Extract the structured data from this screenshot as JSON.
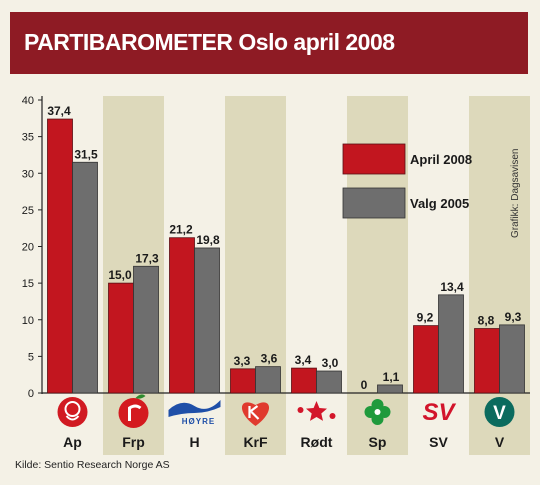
{
  "header": {
    "title": "PARTIBAROMETER Oslo april 2008"
  },
  "source": "Kilde: Sentio Research Norge AS",
  "credit": "Grafikk: Dagsavisen",
  "colors": {
    "header_bg": "#8e1b24",
    "background": "#f4f1e6",
    "band": "#ddd9bb",
    "april_2008": "#c2161f",
    "valg_2005": "#6e6e6e"
  },
  "chart_data": {
    "type": "bar",
    "title": "PARTIBAROMETER Oslo april 2008",
    "categories": [
      "Ap",
      "Frp",
      "H",
      "KrF",
      "Rødt",
      "Sp",
      "SV",
      "V"
    ],
    "series": [
      {
        "name": "April 2008",
        "values": [
          37.4,
          15.0,
          21.2,
          3.3,
          3.4,
          0,
          9.2,
          8.8
        ],
        "labels": [
          "37,4",
          "15,0",
          "21,2",
          "3,3",
          "3,4",
          "0",
          "9,2",
          "8,8"
        ]
      },
      {
        "name": "Valg 2005",
        "values": [
          31.5,
          17.3,
          19.8,
          3.6,
          3.0,
          1.1,
          13.4,
          9.3
        ],
        "labels": [
          "31,5",
          "17,3",
          "19,8",
          "3,6",
          "3,0",
          "1,1",
          "13,4",
          "9,3"
        ]
      }
    ],
    "yticks": [
      "0",
      "5",
      "10",
      "15",
      "20",
      "25",
      "30",
      "35",
      "40"
    ],
    "ylim": [
      0,
      40
    ],
    "legend_position": "top-right",
    "grid": false
  },
  "logos": [
    "ap-rose-logo",
    "frp-apple-logo",
    "hoyre-logo",
    "krf-heart-logo",
    "rodt-star-logo",
    "sp-clover-logo",
    "sv-logo",
    "venstre-logo"
  ],
  "logo_text": {
    "hoyre": "HØYRE",
    "sv": "SV",
    "venstre": "V"
  }
}
